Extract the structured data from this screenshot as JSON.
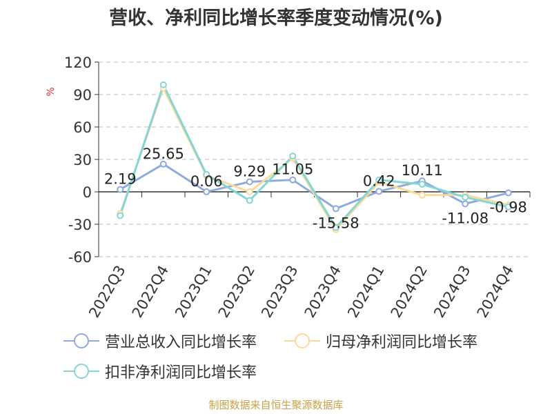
{
  "title": "营收、净利同比增长率季度变动情况(%)",
  "source": "制图数据来自恒生聚源数据库",
  "colors": {
    "revenue": "#8faadc",
    "net_profit": "#fbd99a",
    "deducted": "#84d6d6",
    "axis": "#333333",
    "grid": "#bbbbbb",
    "unit": "#e03030"
  },
  "chart_data": {
    "type": "line",
    "title": "营收、净利同比增长率季度变动情况(%)",
    "xlabel": "",
    "ylabel": "%",
    "categories": [
      "2022Q3",
      "2022Q4",
      "2023Q1",
      "2023Q2",
      "2023Q3",
      "2023Q4",
      "2024Q1",
      "2024Q2",
      "2024Q3",
      "2024Q4"
    ],
    "ylim": [
      -60,
      120
    ],
    "yticks": [
      "120",
      "90",
      "60",
      "30",
      "0",
      "-30",
      "-60"
    ],
    "grid": true,
    "legend_position": "bottom",
    "series": [
      {
        "name": "营业总收入同比增长率",
        "values": [
          2.19,
          25.65,
          0.06,
          9.29,
          11.05,
          -15.58,
          0.42,
          10.11,
          -11.08,
          -0.98
        ],
        "labels": [
          "2.19",
          "25.65",
          "0.06",
          "9.29",
          "11.05",
          "-15.58",
          "0.42",
          "10.11",
          "-11.08",
          "-0.98"
        ]
      },
      {
        "name": "归母净利润同比增长率",
        "values": [
          -20,
          96,
          15,
          0,
          31,
          -35,
          9,
          -3,
          -3,
          -12
        ]
      },
      {
        "name": "扣非净利润同比增长率",
        "values": [
          -22,
          99,
          16,
          -8,
          33,
          -33,
          11,
          7,
          -5,
          -14
        ]
      }
    ]
  }
}
